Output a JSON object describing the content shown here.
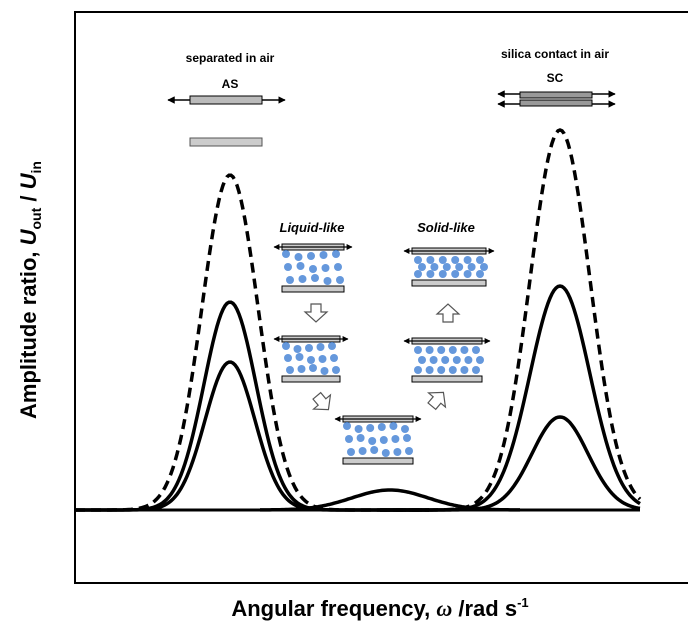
{
  "annotations": {
    "as_title": "separated in air",
    "as_label": "AS",
    "sc_title": "silica contact in air",
    "sc_label": "SC",
    "liquid": "Liquid-like",
    "solid": "Solid-like"
  },
  "y_axis_label": {
    "parts": [
      "Amplitude ratio, ",
      "U",
      "out",
      " / ",
      "U",
      "in"
    ]
  },
  "x_axis_label": {
    "parts": [
      "Angular frequency, ",
      "ω",
      " /rad s",
      "-1"
    ]
  }
}
